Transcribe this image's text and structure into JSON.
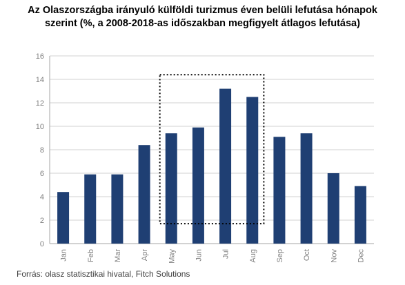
{
  "title_line1": "Az Olaszországba irányuló külföldi turizmus éven belüli lefutása hónapok",
  "title_line2": "szerint (%, a 2008-2018-as időszakban megfigyelt átlagos lefutása)",
  "source": "Forrás: olasz statisztikai hivatal, Fitch Solutions",
  "chart_data": {
    "type": "bar",
    "title": "Az Olaszországba irányuló külföldi turizmus éven belüli lefutása hónapok szerint (%, a 2008-2018-as időszakban megfigyelt átlagos lefutása)",
    "categories": [
      "Jan",
      "Feb",
      "Mar",
      "Apr",
      "May",
      "Jun",
      "Jul",
      "Aug",
      "Sep",
      "Oct",
      "Nov",
      "Dec"
    ],
    "values": [
      4.4,
      5.9,
      5.9,
      8.4,
      9.4,
      9.9,
      13.2,
      12.5,
      9.1,
      9.4,
      6.0,
      4.9
    ],
    "ylim": [
      0,
      16
    ],
    "yticks": [
      "0",
      "2",
      "4",
      "6",
      "8",
      "10",
      "12",
      "14",
      "16"
    ],
    "grid": true,
    "bar_color": "#1f3f73",
    "highlight_categories": [
      "May",
      "Aug"
    ],
    "highlight_top": 14.4,
    "highlight_bottom": 1.7
  }
}
